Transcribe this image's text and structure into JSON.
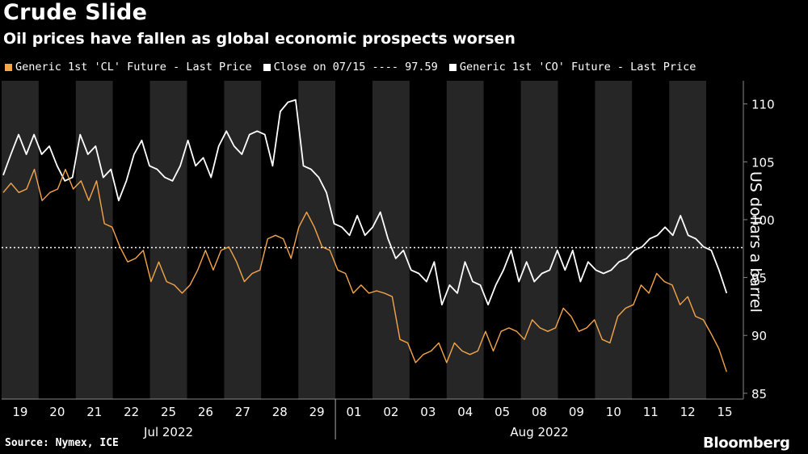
{
  "header": {
    "title": "Crude Slide",
    "subtitle": "Oil prices have fallen as global economic prospects worsen"
  },
  "legend": [
    {
      "label": "Generic 1st 'CL' Future - Last Price",
      "color": "#f5a54a"
    },
    {
      "label": "Close on 07/15 ---- 97.59",
      "color": "#ffffff"
    },
    {
      "label": "Generic 1st 'CO' Future - Last Price",
      "color": "#ffffff"
    }
  ],
  "footer": {
    "source": "Source: Nymex, ICE",
    "brand": "Bloomberg"
  },
  "chart_data": {
    "type": "line",
    "ylabel": "US dollars a barrel",
    "ylim": [
      84.5,
      112
    ],
    "yticks": [
      85,
      90,
      95,
      100,
      105,
      110
    ],
    "days": [
      "19",
      "20",
      "21",
      "22",
      "25",
      "26",
      "27",
      "28",
      "29",
      "01",
      "02",
      "03",
      "04",
      "05",
      "08",
      "09",
      "10",
      "11",
      "12",
      "15"
    ],
    "months": [
      {
        "label": "Jul 2022",
        "first_day": 0,
        "last_day": 8
      },
      {
        "label": "Aug 2022",
        "first_day": 9,
        "last_day": 19
      }
    ],
    "reference_line": {
      "label": "Close on 07/15",
      "value": 97.59,
      "color": "#ffffff",
      "style": "dotted"
    },
    "series": [
      {
        "name": "Generic 1st 'CO' Future - Last Price",
        "color": "#ffffff",
        "values": [
          103.5,
          106,
          107,
          106,
          107,
          106,
          106,
          105,
          103,
          104,
          107,
          106,
          106,
          104,
          104,
          102,
          103,
          106,
          106.5,
          105,
          104,
          104,
          103,
          105,
          106.5,
          105,
          105,
          104,
          106,
          108,
          106,
          106,
          107,
          108,
          107,
          105,
          109,
          110.5,
          110,
          105,
          104,
          104,
          102,
          100,
          99,
          99,
          100,
          99,
          99,
          101,
          98,
          97,
          97,
          96,
          95,
          95,
          96,
          93,
          94,
          94,
          96,
          95,
          94,
          93,
          94,
          96,
          97,
          95,
          96,
          95,
          95,
          96,
          97,
          96,
          97,
          95,
          96,
          96,
          95,
          96,
          96,
          97,
          97,
          98,
          98,
          99,
          99,
          99,
          100,
          99,
          98,
          98,
          97,
          96,
          93.3
        ]
      },
      {
        "name": "Generic 1st 'CL' Future - Last Price",
        "color": "#f5a54a",
        "values": [
          102,
          103.5,
          102,
          103,
          104,
          102,
          102,
          103,
          104,
          103,
          103,
          102,
          103,
          100,
          99,
          98,
          96,
          97,
          97,
          95,
          96,
          95,
          94,
          94,
          94,
          96,
          97,
          96,
          97,
          98,
          96,
          95,
          95,
          96,
          98,
          99,
          98,
          97,
          99,
          101,
          99,
          98,
          97,
          96,
          95,
          94,
          94,
          94,
          93.5,
          94,
          93,
          90,
          89,
          88,
          88,
          89,
          89,
          88,
          89,
          89,
          88,
          89,
          90,
          89,
          90,
          91,
          90,
          90,
          91,
          91,
          90,
          91,
          92,
          92,
          90,
          91,
          91,
          90,
          89,
          92,
          92,
          93,
          94,
          94,
          95,
          95,
          94,
          93,
          93,
          92,
          91,
          90.5,
          88.5,
          87.2
        ]
      }
    ]
  }
}
